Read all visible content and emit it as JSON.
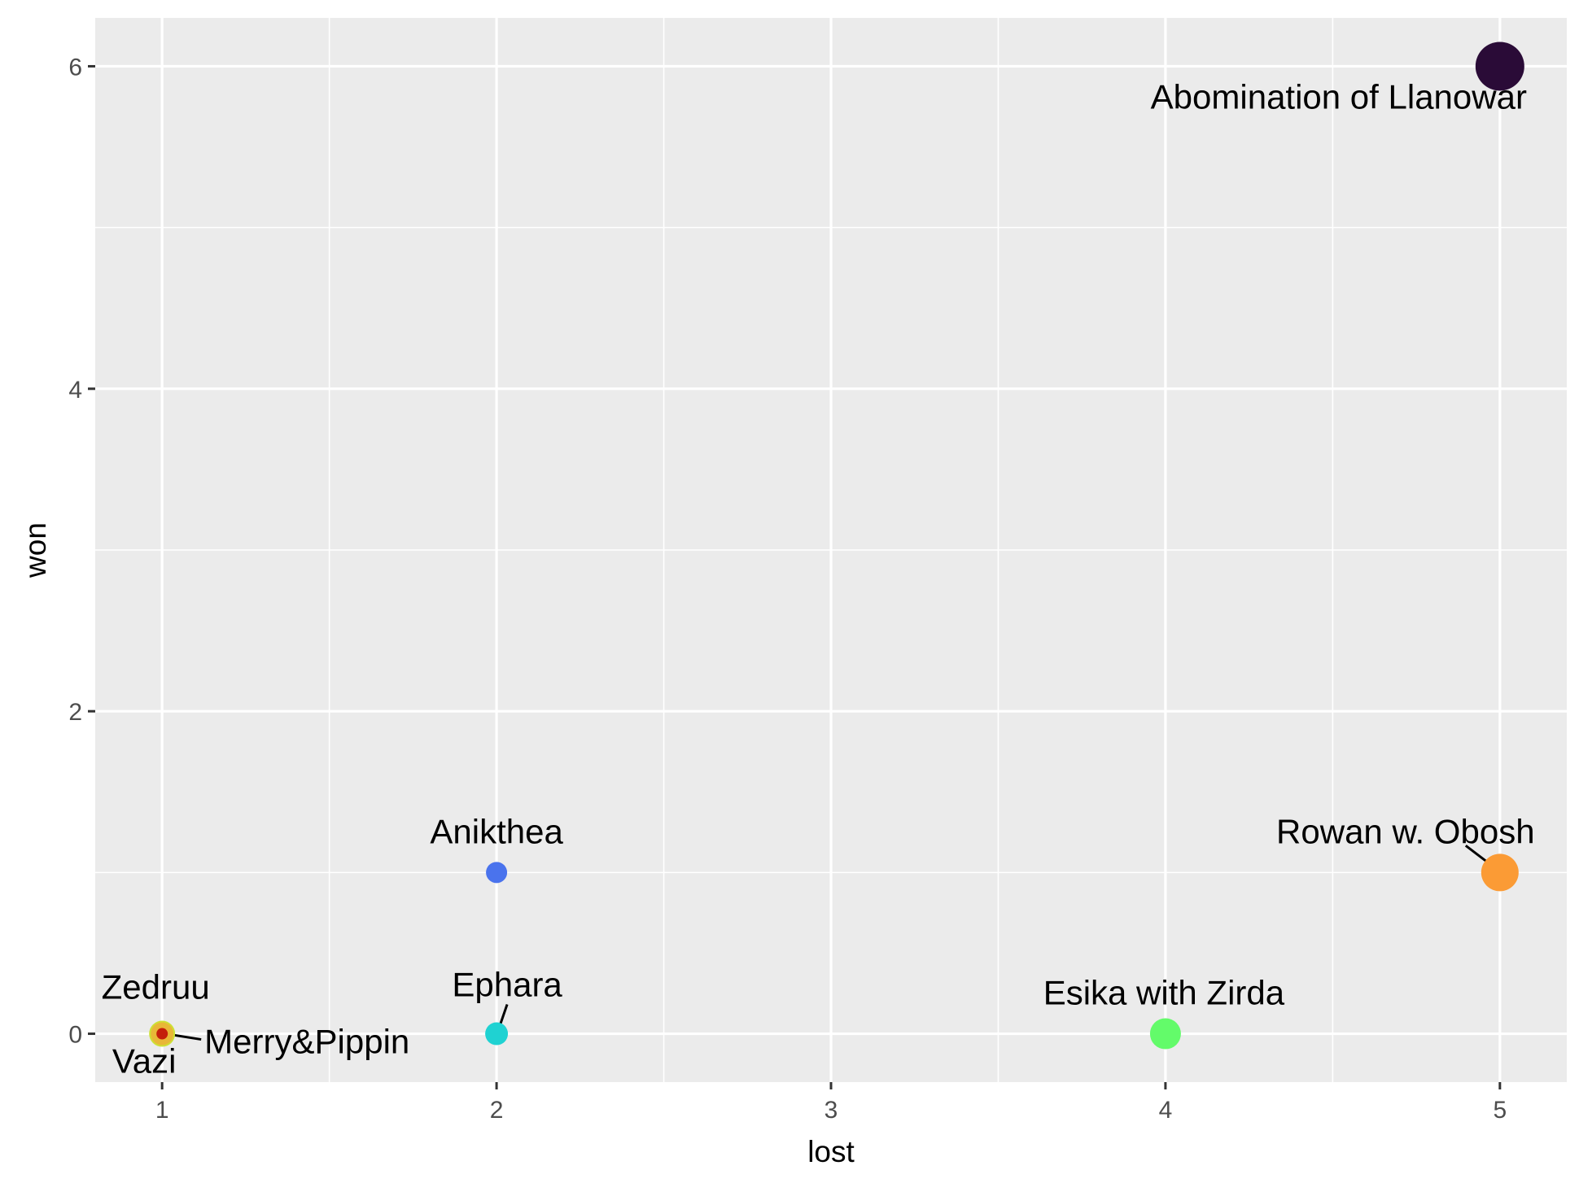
{
  "chart_data": {
    "type": "scatter",
    "title": "",
    "xlabel": "lost",
    "ylabel": "won",
    "xlim": [
      0.8,
      5.2
    ],
    "ylim": [
      -0.3,
      6.3
    ],
    "x_ticks": [
      1,
      2,
      3,
      4,
      5
    ],
    "y_ticks": [
      0,
      2,
      4,
      6
    ],
    "x_tick_labels": [
      "1",
      "2",
      "3",
      "4",
      "5"
    ],
    "y_tick_labels": [
      "0",
      "2",
      "4",
      "6"
    ],
    "grid": true,
    "legend": "none",
    "points": [
      {
        "label": "Abomination of Llanowar",
        "x": 5,
        "y": 6,
        "color": "#2a0b37"
      },
      {
        "label": "Rowan w. Obosh",
        "x": 5,
        "y": 1,
        "color": "#fb9b35"
      },
      {
        "label": "Anikthea",
        "x": 2,
        "y": 1,
        "color": "#4a73ed"
      },
      {
        "label": "Esika with Zirda",
        "x": 4,
        "y": 0,
        "color": "#63fb6a"
      },
      {
        "label": "Ephara",
        "x": 2,
        "y": 0,
        "color": "#1fd2d2"
      },
      {
        "label": "Zedruu",
        "x": 1,
        "y": 0,
        "color": "#cde034"
      },
      {
        "label": "Merry&Pippin",
        "x": 1,
        "y": 0,
        "color": "#e8b737"
      },
      {
        "label": "Vazi",
        "x": 1,
        "y": 0,
        "color": "#c41e0b"
      }
    ]
  }
}
